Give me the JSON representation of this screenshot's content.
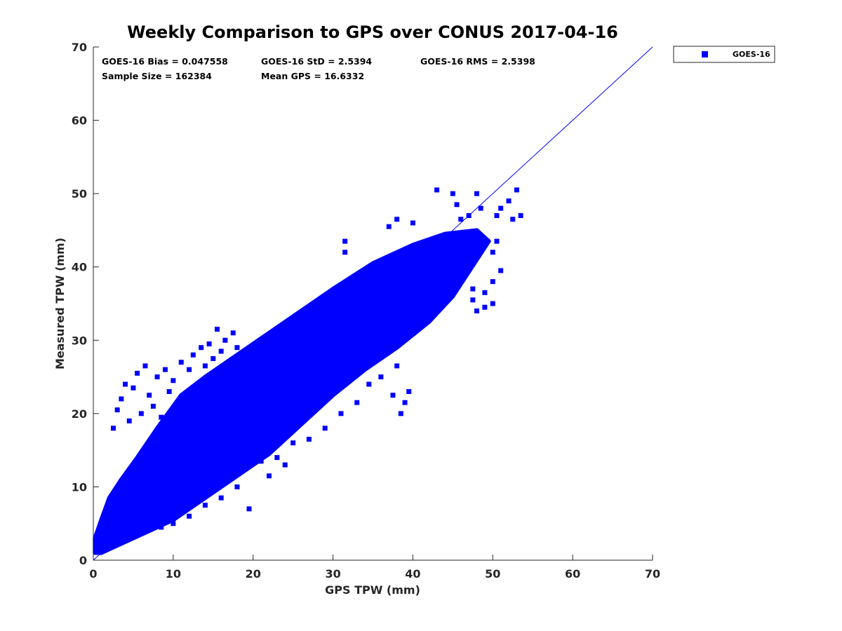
{
  "chart_data": {
    "type": "scatter",
    "title": "Weekly Comparison to GPS over CONUS 2017-04-16",
    "xlabel": "GPS TPW (mm)",
    "ylabel": "Measured TPW (mm)",
    "xlim": [
      0,
      70
    ],
    "ylim": [
      0,
      70
    ],
    "xticks": [
      "0",
      "10",
      "20",
      "30",
      "40",
      "50",
      "60",
      "70"
    ],
    "yticks": [
      "0",
      "10",
      "20",
      "30",
      "40",
      "50",
      "60",
      "70"
    ],
    "grid": false,
    "legend_position": "outside top-right",
    "annotations": [
      "GOES-16 Bias = 0.047558",
      "GOES-16 StD = 2.5394",
      "GOES-16 RMS = 2.5398",
      "Sample Size = 162384",
      "Mean GPS = 16.6332"
    ],
    "reference_line": {
      "x": [
        0,
        70
      ],
      "y": [
        0,
        70
      ],
      "color": "#0000ff"
    },
    "series": [
      {
        "name": "GOES-16",
        "marker": "square",
        "color": "#0000ff",
        "bias": 0.047558,
        "std": 2.5394,
        "rms": 2.5398,
        "sample_size": 162384,
        "mean_gps": 16.6332,
        "main_cloud_envelope": [
          [
            0.2,
            1.0
          ],
          [
            0.2,
            3.0
          ],
          [
            1.0,
            5.5
          ],
          [
            2.0,
            8.5
          ],
          [
            3.5,
            11.0
          ],
          [
            5.5,
            14.0
          ],
          [
            8.0,
            18.0
          ],
          [
            11.0,
            22.5
          ],
          [
            14.0,
            25.0
          ],
          [
            18.0,
            28.0
          ],
          [
            22.0,
            31.0
          ],
          [
            26.0,
            34.0
          ],
          [
            30.0,
            37.0
          ],
          [
            35.0,
            40.5
          ],
          [
            40.0,
            43.0
          ],
          [
            44.0,
            44.5
          ],
          [
            48.0,
            45.0
          ],
          [
            49.5,
            43.5
          ],
          [
            48.0,
            41.0
          ],
          [
            45.0,
            36.0
          ],
          [
            42.0,
            32.5
          ],
          [
            38.0,
            29.0
          ],
          [
            34.0,
            26.0
          ],
          [
            30.0,
            22.5
          ],
          [
            26.0,
            18.5
          ],
          [
            22.0,
            14.5
          ],
          [
            18.0,
            11.5
          ],
          [
            14.0,
            8.5
          ],
          [
            10.0,
            5.5
          ],
          [
            6.0,
            3.5
          ],
          [
            3.0,
            2.0
          ],
          [
            1.0,
            1.0
          ]
        ],
        "outlier_points": [
          [
            2.5,
            18.0
          ],
          [
            3.0,
            20.5
          ],
          [
            3.5,
            22.0
          ],
          [
            4.0,
            24.0
          ],
          [
            4.5,
            19.0
          ],
          [
            5.0,
            23.5
          ],
          [
            5.5,
            25.5
          ],
          [
            6.0,
            20.0
          ],
          [
            6.5,
            26.5
          ],
          [
            7.0,
            22.5
          ],
          [
            7.5,
            21.0
          ],
          [
            8.0,
            25.0
          ],
          [
            8.5,
            19.5
          ],
          [
            9.0,
            26.0
          ],
          [
            9.5,
            23.0
          ],
          [
            10.0,
            24.5
          ],
          [
            10.5,
            21.5
          ],
          [
            11.0,
            27.0
          ],
          [
            11.5,
            22.0
          ],
          [
            12.0,
            26.0
          ],
          [
            12.5,
            28.0
          ],
          [
            13.0,
            24.0
          ],
          [
            13.5,
            29.0
          ],
          [
            14.0,
            26.5
          ],
          [
            14.5,
            29.5
          ],
          [
            15.0,
            27.5
          ],
          [
            15.5,
            31.5
          ],
          [
            16.0,
            28.5
          ],
          [
            16.5,
            30.0
          ],
          [
            17.0,
            27.0
          ],
          [
            17.5,
            31.0
          ],
          [
            18.0,
            29.0
          ],
          [
            11.0,
            8.0
          ],
          [
            13.0,
            9.5
          ],
          [
            15.0,
            10.0
          ],
          [
            17.0,
            11.5
          ],
          [
            19.0,
            12.5
          ],
          [
            21.0,
            13.5
          ],
          [
            23.0,
            14.0
          ],
          [
            25.0,
            16.0
          ],
          [
            27.0,
            16.5
          ],
          [
            29.0,
            18.0
          ],
          [
            31.0,
            20.0
          ],
          [
            33.0,
            21.5
          ],
          [
            34.5,
            24.0
          ],
          [
            36.0,
            25.0
          ],
          [
            38.0,
            26.5
          ],
          [
            39.5,
            23.0
          ],
          [
            38.5,
            20.0
          ],
          [
            39.0,
            21.5
          ],
          [
            37.5,
            22.5
          ],
          [
            31.5,
            42.0
          ],
          [
            31.5,
            43.5
          ],
          [
            37.0,
            45.5
          ],
          [
            38.0,
            46.5
          ],
          [
            40.0,
            46.0
          ],
          [
            43.0,
            50.5
          ],
          [
            45.0,
            50.0
          ],
          [
            45.5,
            48.5
          ],
          [
            46.0,
            46.5
          ],
          [
            47.0,
            47.0
          ],
          [
            48.0,
            50.0
          ],
          [
            48.5,
            48.0
          ],
          [
            50.5,
            47.0
          ],
          [
            51.0,
            48.0
          ],
          [
            52.0,
            49.0
          ],
          [
            53.0,
            50.5
          ],
          [
            53.5,
            47.0
          ],
          [
            52.5,
            46.5
          ],
          [
            50.5,
            43.5
          ],
          [
            50.0,
            42.0
          ],
          [
            51.0,
            39.5
          ],
          [
            50.0,
            38.0
          ],
          [
            49.0,
            36.5
          ],
          [
            50.0,
            35.0
          ],
          [
            49.0,
            34.5
          ],
          [
            47.5,
            35.5
          ],
          [
            47.5,
            37.0
          ],
          [
            48.0,
            34.0
          ],
          [
            8.5,
            4.5
          ],
          [
            10.0,
            5.0
          ],
          [
            12.0,
            6.0
          ],
          [
            14.0,
            7.5
          ],
          [
            16.0,
            8.5
          ],
          [
            18.0,
            10.0
          ],
          [
            19.5,
            7.0
          ],
          [
            22.0,
            11.5
          ],
          [
            24.0,
            13.0
          ]
        ]
      }
    ]
  }
}
